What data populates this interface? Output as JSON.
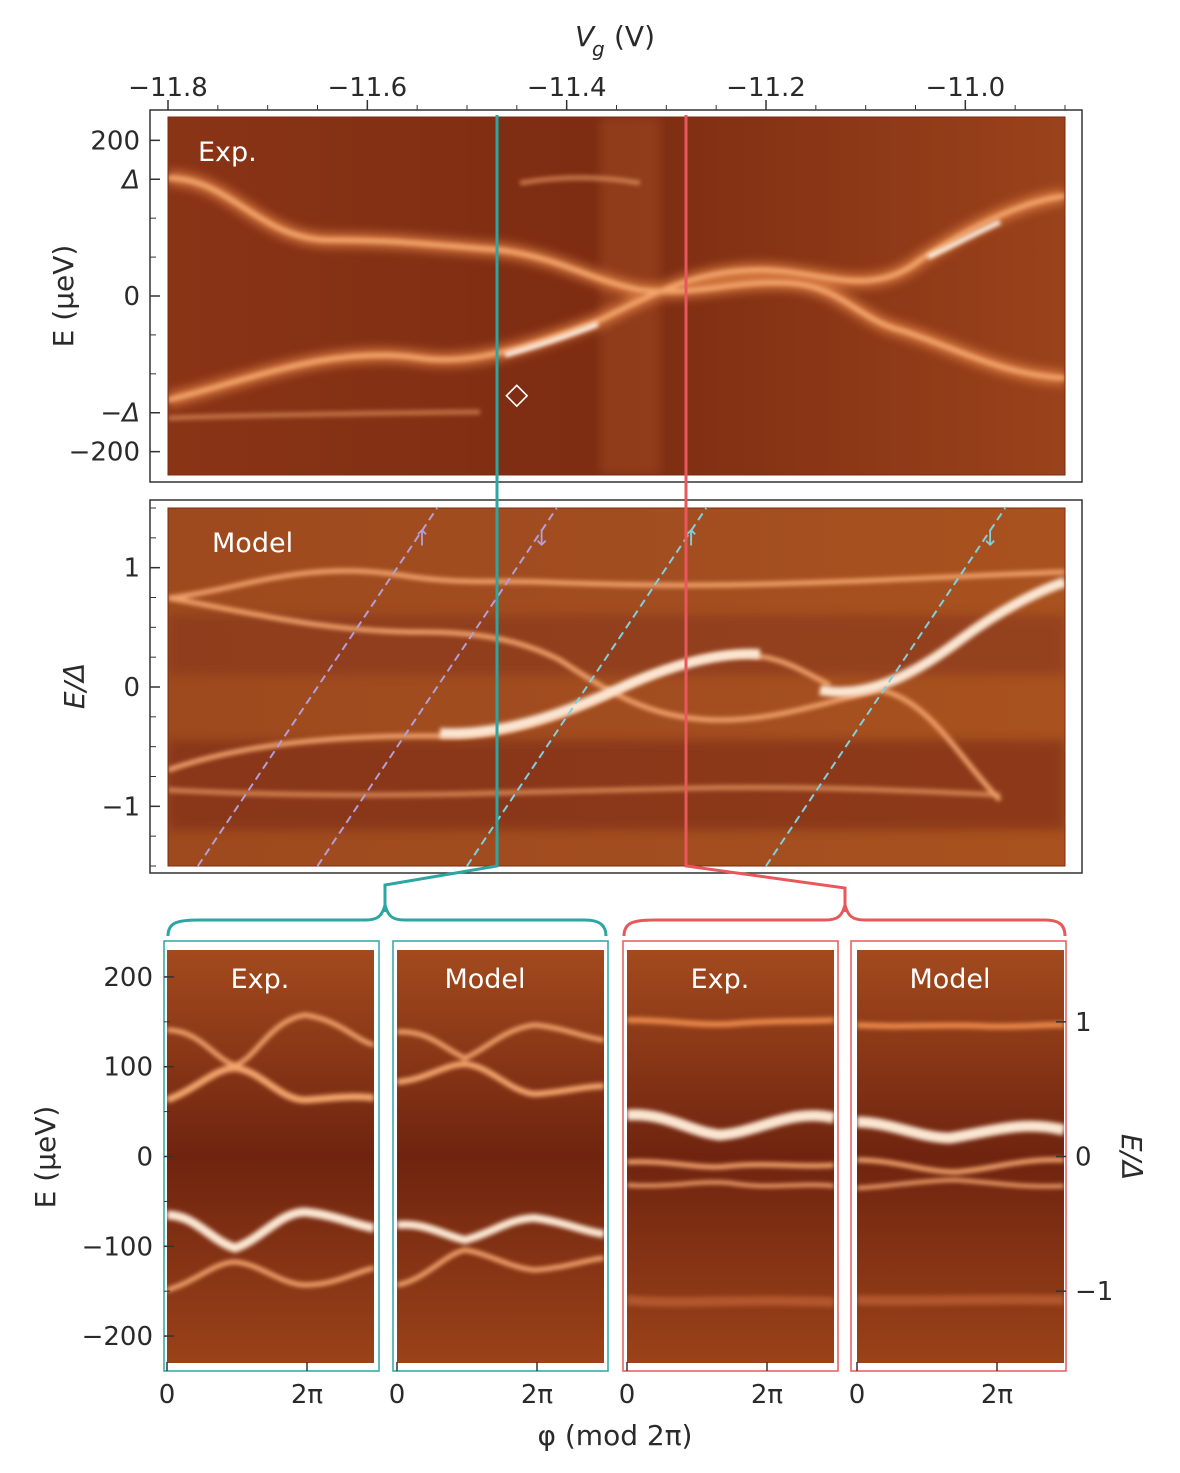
{
  "chart_data": [
    {
      "type": "heatmap",
      "id": "top-exp",
      "panel_label": "Exp.",
      "xlabel": "V_g (V)",
      "xlabel_main": "V",
      "xlabel_sub": "g",
      "xlabel_unit": "(V)",
      "xlim": [
        -11.8,
        -10.9
      ],
      "xticks": [
        -11.8,
        -11.6,
        -11.4,
        -11.2,
        -11.0
      ],
      "xtick_labels": [
        "−11.8",
        "−11.6",
        "−11.4",
        "−11.2",
        "−11.0"
      ],
      "ylabel": "E (μeV)",
      "ylim": [
        -230,
        230
      ],
      "yticks": [
        200,
        150,
        0,
        -150,
        -200
      ],
      "ytick_labels": [
        "200",
        "Δ",
        "0",
        "−Δ",
        "−200"
      ],
      "marker": {
        "symbol": "diamond",
        "vg": -11.45,
        "e": -125
      },
      "cuts": [
        {
          "color": "#2ba6a3",
          "vg": -11.46
        },
        {
          "color": "#e8585a",
          "vg": -11.27
        }
      ]
    },
    {
      "type": "heatmap",
      "id": "top-model",
      "panel_label": "Model",
      "xlim": [
        -11.8,
        -10.9
      ],
      "ylabel": "E/Δ",
      "ylim": [
        -1.5,
        1.5
      ],
      "yticks": [
        1,
        0,
        -1
      ],
      "ytick_labels": [
        "1",
        "0",
        "−1"
      ],
      "dashed_lines": [
        {
          "color": "#b49ed6",
          "spin": "↑",
          "from": [
            -11.77,
            -1.5
          ],
          "to": [
            -11.53,
            1.5
          ],
          "arrow_at": [
            -11.545,
            1.27
          ]
        },
        {
          "color": "#b49ed6",
          "spin": "↓",
          "from": [
            -11.65,
            -1.5
          ],
          "to": [
            -11.41,
            1.5
          ],
          "arrow_at": [
            -11.425,
            1.27
          ]
        },
        {
          "color": "#7ed0e0",
          "spin": "↑",
          "from": [
            -11.5,
            -1.5
          ],
          "to": [
            -11.26,
            1.5
          ],
          "arrow_at": [
            -11.275,
            1.27
          ]
        },
        {
          "color": "#7ed0e0",
          "spin": "↓",
          "from": [
            -11.2,
            -1.5
          ],
          "to": [
            -10.96,
            1.5
          ],
          "arrow_at": [
            -10.975,
            1.27
          ]
        }
      ]
    },
    {
      "type": "heatmap",
      "id": "phase-panels",
      "xlabel": "φ (mod 2π)",
      "xtick_labels": [
        "0",
        "2π"
      ],
      "ylabel_left": "E (μeV)",
      "ylim_left": [
        -230,
        230
      ],
      "yticks_left": [
        200,
        100,
        0,
        -100,
        -200
      ],
      "ytick_labels_left": [
        "200",
        "100",
        "0",
        "−100",
        "−200"
      ],
      "ylabel_right": "E/Δ",
      "yticks_right": [
        1,
        0,
        -1
      ],
      "ytick_labels_right": [
        "1",
        "0",
        "−1"
      ],
      "panels": [
        {
          "label": "Exp.",
          "group": "cyan",
          "frame_color": "#2ba6a3"
        },
        {
          "label": "Model",
          "group": "cyan",
          "frame_color": "#2ba6a3"
        },
        {
          "label": "Exp.",
          "group": "red",
          "frame_color": "#e8585a"
        },
        {
          "label": "Model",
          "group": "red",
          "frame_color": "#e8585a"
        }
      ]
    }
  ],
  "colors": {
    "background_dark": "#7a2a12",
    "background_mid": "#a8481f",
    "ridge": "#f2a36a",
    "ridge_bright": "#fff3e4",
    "cyan": "#2ba6a3",
    "red": "#e8585a"
  }
}
